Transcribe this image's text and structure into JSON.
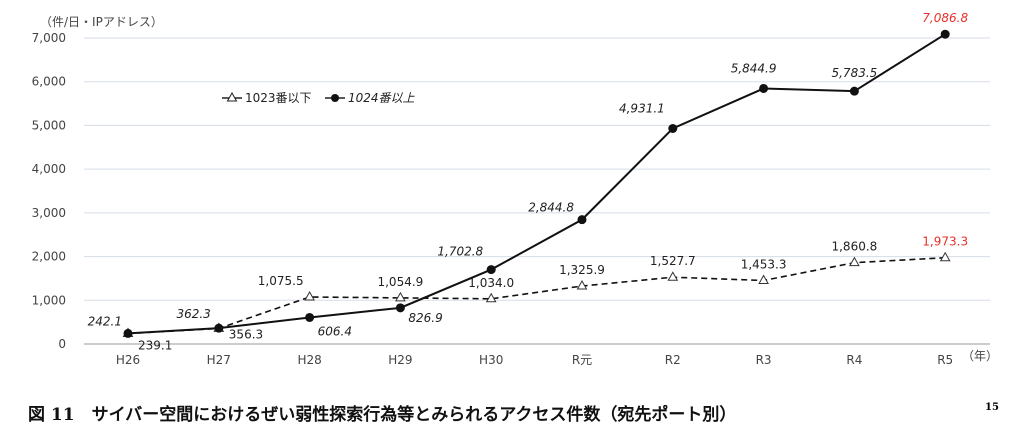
{
  "chart_data": {
    "type": "line",
    "title": "図 11　サイバー空間におけるぜい弱性探索行為等とみられるアクセス件数（宛先ポート別）",
    "title_superscript": "15",
    "ylabel": "（件/日・IPアドレス）",
    "xlabel_unit": "（年）",
    "categories": [
      "H26",
      "H27",
      "H28",
      "H29",
      "H30",
      "R元",
      "R2",
      "R3",
      "R4",
      "R5"
    ],
    "ylim": [
      0,
      7000
    ],
    "yticks": [
      0,
      1000,
      2000,
      3000,
      4000,
      5000,
      6000,
      7000
    ],
    "ytick_labels": [
      "0",
      "1,000",
      "2,000",
      "3,000",
      "4,000",
      "5,000",
      "6,000",
      "7,000"
    ],
    "grid": true,
    "legend_position": "top-left",
    "series": [
      {
        "name": "1023番以下",
        "style": "dashed",
        "marker": "triangle-open",
        "values": [
          239.1,
          356.3,
          1075.5,
          1054.9,
          1034.0,
          1325.9,
          1527.7,
          1453.3,
          1860.8,
          1973.3
        ],
        "labels": [
          "239.1",
          "356.3",
          "1,075.5",
          "1,054.9",
          "1,034.0",
          "1,325.9",
          "1,527.7",
          "1,453.3",
          "1,860.8",
          "1,973.3"
        ]
      },
      {
        "name": "1024番以上",
        "style": "solid",
        "marker": "circle-filled",
        "values": [
          242.1,
          362.3,
          606.4,
          826.9,
          1702.8,
          2844.8,
          4931.1,
          5844.9,
          5783.5,
          7086.8
        ],
        "labels": [
          "242.1",
          "362.3",
          "606.4",
          "826.9",
          "1,702.8",
          "2,844.8",
          "4,931.1",
          "5,844.9",
          "5,783.5",
          "7,086.8"
        ]
      }
    ],
    "highlight_color": "#e8302a"
  }
}
